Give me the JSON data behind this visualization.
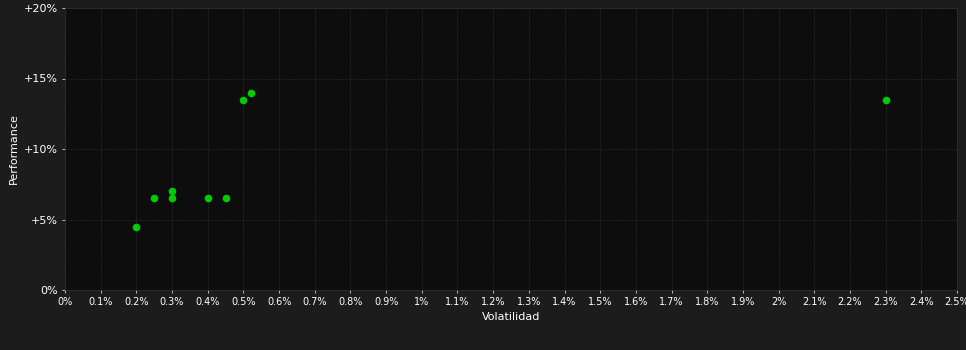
{
  "background_color": "#1c1c1c",
  "plot_bg_color": "#0d0d0d",
  "grid_color": "#404040",
  "dot_color": "#00cc00",
  "xlabel": "Volatilidad",
  "ylabel": "Performance",
  "x_ticks": [
    0.0,
    0.001,
    0.002,
    0.003,
    0.004,
    0.005,
    0.006,
    0.007,
    0.008,
    0.009,
    0.01,
    0.011,
    0.012,
    0.013,
    0.014,
    0.015,
    0.016,
    0.017,
    0.018,
    0.019,
    0.02,
    0.021,
    0.022,
    0.023,
    0.024,
    0.025
  ],
  "y_ticks": [
    0.0,
    0.05,
    0.1,
    0.15,
    0.2
  ],
  "xlim": [
    0.0,
    0.025
  ],
  "ylim": [
    0.0,
    0.2
  ],
  "points": [
    [
      0.002,
      0.045
    ],
    [
      0.0025,
      0.065
    ],
    [
      0.003,
      0.07
    ],
    [
      0.003,
      0.065
    ],
    [
      0.004,
      0.065
    ],
    [
      0.0045,
      0.065
    ],
    [
      0.005,
      0.135
    ],
    [
      0.0052,
      0.14
    ],
    [
      0.023,
      0.135
    ]
  ],
  "figsize": [
    9.66,
    3.5
  ],
  "dpi": 100
}
